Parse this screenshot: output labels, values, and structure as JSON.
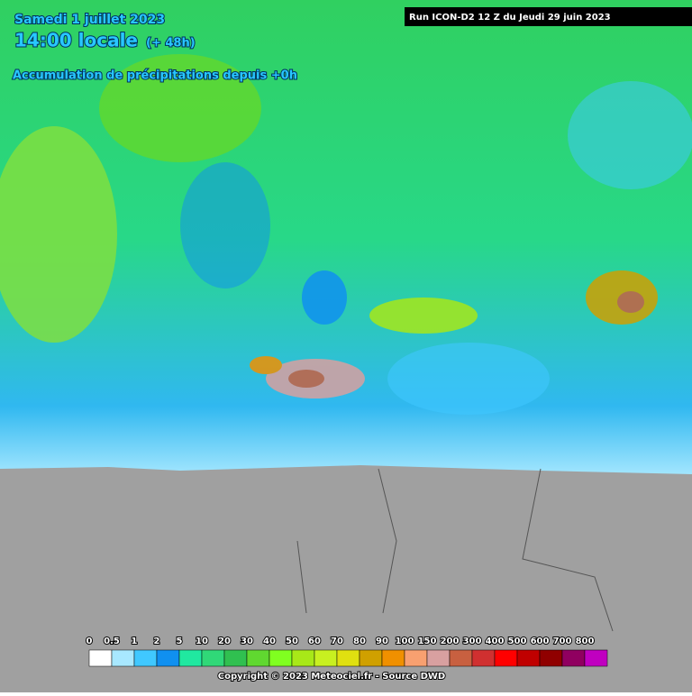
{
  "header": {
    "date": "Samedi 1 juillet 2023",
    "time": "14:00 locale",
    "offset": "(+ 48h)",
    "product": "Accumulation de précipitations depuis +0h",
    "run": "Run ICON-D2 12 Z du Jeudi 29 juin 2023"
  },
  "legend": {
    "items": [
      {
        "label": 0,
        "color": "#ffffff"
      },
      {
        "label": 0.5,
        "color": "#a8e8ff"
      },
      {
        "label": 1,
        "color": "#40c8ff"
      },
      {
        "label": 2,
        "color": "#1090f0"
      },
      {
        "label": 5,
        "color": "#20e8a0"
      },
      {
        "label": 10,
        "color": "#30d878"
      },
      {
        "label": 20,
        "color": "#30c050"
      },
      {
        "label": 30,
        "color": "#60d830"
      },
      {
        "label": 40,
        "color": "#80ff20"
      },
      {
        "label": 50,
        "color": "#a8e818"
      },
      {
        "label": 60,
        "color": "#c8f020"
      },
      {
        "label": 70,
        "color": "#e0e010"
      },
      {
        "label": 80,
        "color": "#d0a000"
      },
      {
        "label": 90,
        "color": "#f09000"
      },
      {
        "label": 100,
        "color": "#f8a070"
      },
      {
        "label": 150,
        "color": "#d8a0a0"
      },
      {
        "label": 200,
        "color": "#c86040"
      },
      {
        "label": 300,
        "color": "#d03030"
      },
      {
        "label": 400,
        "color": "#ff0000"
      },
      {
        "label": 500,
        "color": "#c00000"
      },
      {
        "label": 600,
        "color": "#900000"
      },
      {
        "label": 700,
        "color": "#900060"
      },
      {
        "label": 800,
        "color": "#c000c0"
      }
    ]
  },
  "footer": {
    "copyright": "Copyright © 2023 Meteociel.fr - Source DWD"
  }
}
